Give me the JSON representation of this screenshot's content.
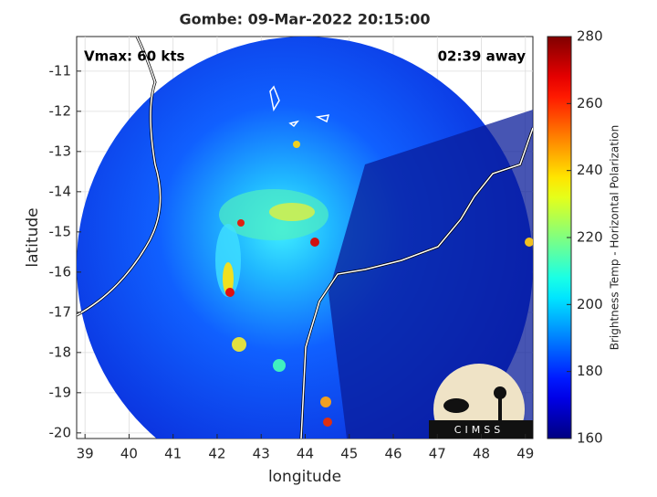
{
  "chart_data": {
    "type": "image",
    "title": "Gombe: 09-Mar-2022 20:15:00",
    "annotations": [
      "Vmax: 60 kts",
      "02:39 away"
    ],
    "x_label": "longitude",
    "y_label": "latitude",
    "xlim": [
      38.81,
      49.17
    ],
    "xticks": [
      39,
      40,
      41,
      42,
      43,
      44,
      45,
      46,
      47,
      48,
      49
    ],
    "ylim": [
      -20.14,
      -10.14
    ],
    "yticks": [
      -11,
      -12,
      -13,
      -14,
      -15,
      -16,
      -17,
      -18,
      -19,
      -20
    ],
    "grid": true,
    "colorbar": {
      "label": "Brightness Temp - Horizontal Polarization",
      "colormap": "jet",
      "lim": [
        160,
        280
      ],
      "ticks": [
        160,
        180,
        200,
        220,
        240,
        260,
        280
      ]
    },
    "logo_text": "CIMSS"
  }
}
